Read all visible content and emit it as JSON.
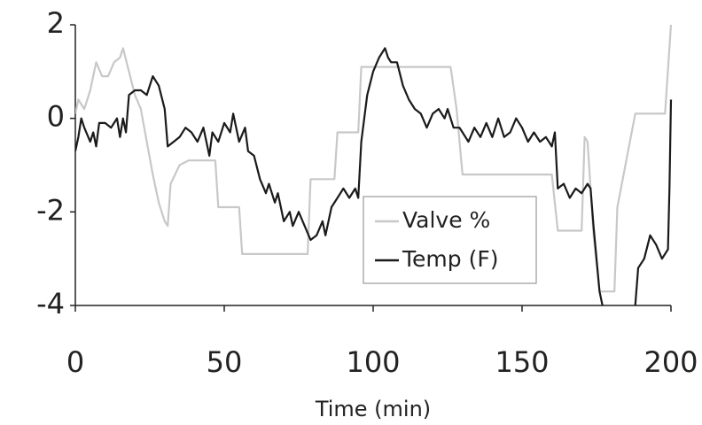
{
  "chart_data": {
    "type": "line",
    "xlabel": "Time (min)",
    "xlim": [
      0,
      200
    ],
    "xticks": [
      0,
      50,
      100,
      150,
      200
    ],
    "ylim": [
      -4,
      2
    ],
    "yticks": [
      -4,
      -2,
      0,
      2
    ],
    "legend_position": "lower-center",
    "series": [
      {
        "name": "Valve %",
        "color": "#c8c8c8",
        "x": [
          0,
          1,
          3,
          5,
          7,
          9,
          11,
          13,
          15,
          16,
          18,
          20,
          22,
          24,
          26,
          28,
          30,
          31,
          32,
          35,
          38,
          47,
          48,
          55,
          56,
          78,
          79,
          87,
          88,
          95,
          96,
          126,
          128,
          130,
          160,
          162,
          170,
          171,
          172,
          173,
          174,
          176,
          181,
          182,
          188,
          198,
          200
        ],
        "values": [
          0.1,
          0.4,
          0.2,
          0.6,
          1.2,
          0.9,
          0.9,
          1.2,
          1.3,
          1.5,
          1.0,
          0.5,
          0.2,
          -0.5,
          -1.2,
          -1.8,
          -2.2,
          -2.3,
          -1.4,
          -1.0,
          -0.9,
          -0.9,
          -1.9,
          -1.9,
          -2.9,
          -2.9,
          -1.3,
          -1.3,
          -0.3,
          -0.3,
          1.1,
          1.1,
          0.2,
          -1.2,
          -1.2,
          -2.4,
          -2.4,
          -0.4,
          -0.5,
          -1.5,
          -2.5,
          -3.7,
          -3.7,
          -1.9,
          0.1,
          0.1,
          2.0
        ]
      },
      {
        "name": "Temp (F)",
        "color": "#1a1a1a",
        "x": [
          0,
          1,
          2,
          3,
          5,
          6,
          7,
          8,
          10,
          12,
          14,
          15,
          16,
          17,
          18,
          20,
          22,
          24,
          26,
          28,
          30,
          31,
          33,
          35,
          37,
          39,
          41,
          43,
          45,
          46,
          48,
          50,
          52,
          53,
          55,
          57,
          58,
          60,
          62,
          64,
          65,
          67,
          68,
          70,
          72,
          73,
          75,
          77,
          79,
          81,
          83,
          84,
          86,
          88,
          90,
          92,
          94,
          95,
          96,
          98,
          100,
          102,
          104,
          105,
          106,
          108,
          110,
          112,
          114,
          116,
          118,
          120,
          122,
          124,
          125,
          127,
          129,
          130,
          132,
          134,
          136,
          138,
          140,
          142,
          144,
          146,
          148,
          150,
          152,
          154,
          156,
          158,
          160,
          161,
          162,
          164,
          166,
          168,
          170,
          172,
          173,
          174,
          176,
          177,
          182,
          188,
          189,
          191,
          193,
          195,
          197,
          199,
          199.5,
          200
        ],
        "values": [
          -0.7,
          -0.4,
          0.0,
          -0.2,
          -0.5,
          -0.3,
          -0.6,
          -0.1,
          -0.1,
          -0.2,
          0.0,
          -0.4,
          0.0,
          -0.3,
          0.5,
          0.6,
          0.6,
          0.5,
          0.9,
          0.7,
          0.2,
          -0.6,
          -0.5,
          -0.4,
          -0.2,
          -0.3,
          -0.5,
          -0.2,
          -0.8,
          -0.3,
          -0.5,
          -0.1,
          -0.3,
          0.1,
          -0.5,
          -0.2,
          -0.7,
          -0.8,
          -1.3,
          -1.6,
          -1.4,
          -1.8,
          -1.6,
          -2.2,
          -2.0,
          -2.3,
          -2.0,
          -2.3,
          -2.6,
          -2.5,
          -2.2,
          -2.5,
          -1.9,
          -1.7,
          -1.5,
          -1.7,
          -1.5,
          -1.7,
          -0.5,
          0.5,
          1.0,
          1.3,
          1.5,
          1.3,
          1.2,
          1.2,
          0.7,
          0.4,
          0.2,
          0.1,
          -0.2,
          0.1,
          0.2,
          0.0,
          0.2,
          -0.2,
          -0.2,
          -0.3,
          -0.5,
          -0.2,
          -0.4,
          -0.1,
          -0.4,
          0.0,
          -0.4,
          -0.3,
          0.0,
          -0.2,
          -0.5,
          -0.3,
          -0.5,
          -0.4,
          -0.6,
          -0.3,
          -1.5,
          -1.4,
          -1.7,
          -1.5,
          -1.6,
          -1.4,
          -1.5,
          -2.3,
          -3.7,
          -4.0,
          null,
          -4.0,
          -3.2,
          -3.0,
          -2.5,
          -2.7,
          -3.0,
          -2.8,
          -1.5,
          0.4
        ]
      }
    ]
  }
}
